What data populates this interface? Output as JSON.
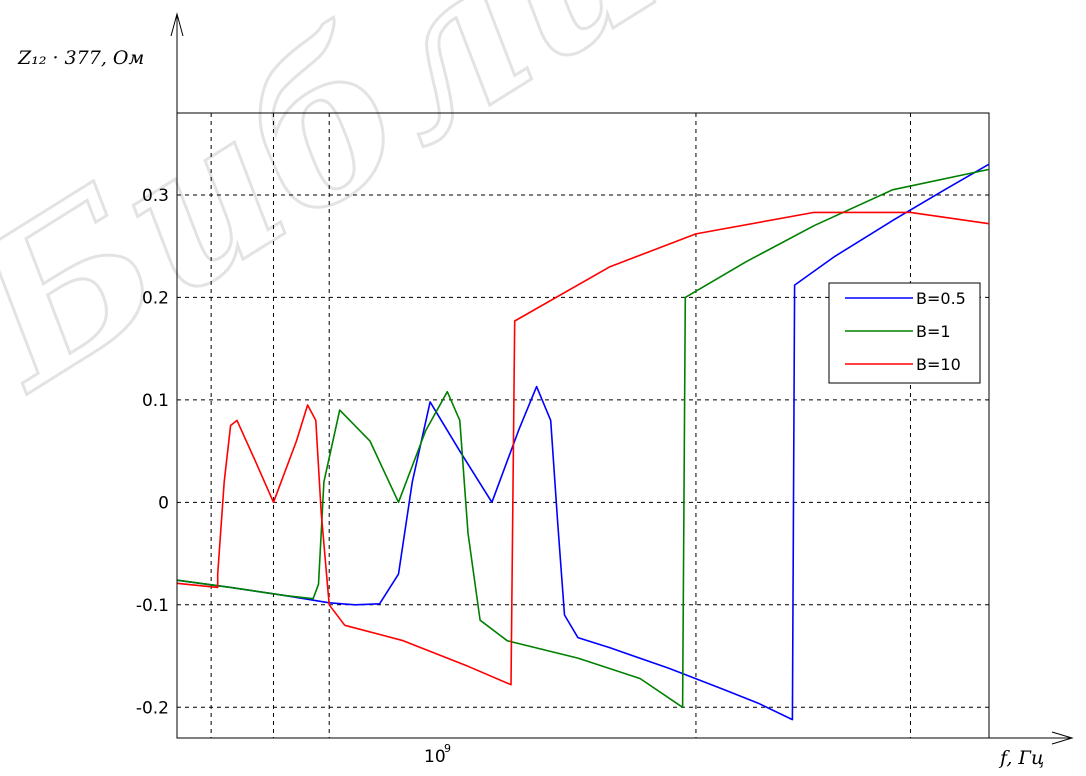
{
  "chart_data": {
    "type": "line",
    "title": "",
    "ylabel": "Z₁₂ · 377, Ом",
    "xlabel": "f, Гц",
    "xscale": "log",
    "watermark": "Библиот",
    "ylim": [
      -0.23,
      0.38
    ],
    "yticks": [
      -0.2,
      -0.1,
      0,
      0.1,
      0.2,
      0.3
    ],
    "ytick_labels": [
      "-0.2",
      "-0.1",
      "0",
      "0.1",
      "0.2",
      "0.3"
    ],
    "xtick_label_base": "10",
    "xtick_label_exp": "9",
    "grid": true,
    "legend_position": "right",
    "series": [
      {
        "name": "B=0.5",
        "color": "#0000ff",
        "points": [
          [
            0.75,
            -0.076
          ],
          [
            0.83,
            -0.083
          ],
          [
            0.92,
            -0.091
          ],
          [
            1.0,
            -0.098
          ],
          [
            1.05,
            -0.1
          ],
          [
            1.1,
            -0.099
          ],
          [
            1.14,
            -0.07
          ],
          [
            1.17,
            0.02
          ],
          [
            1.21,
            0.098
          ],
          [
            1.28,
            0.05
          ],
          [
            1.36,
            0.0
          ],
          [
            1.43,
            0.07
          ],
          [
            1.48,
            0.113
          ],
          [
            1.52,
            0.08
          ],
          [
            1.54,
            -0.02
          ],
          [
            1.56,
            -0.11
          ],
          [
            1.6,
            -0.132
          ],
          [
            1.7,
            -0.142
          ],
          [
            1.9,
            -0.162
          ],
          [
            2.1,
            -0.182
          ],
          [
            2.25,
            -0.196
          ],
          [
            2.4,
            -0.212
          ],
          [
            2.41,
            0.212
          ],
          [
            2.6,
            0.24
          ],
          [
            2.9,
            0.275
          ],
          [
            3.2,
            0.305
          ],
          [
            3.48,
            0.33
          ]
        ]
      },
      {
        "name": "B=1",
        "color": "#008000",
        "points": [
          [
            0.75,
            -0.076
          ],
          [
            0.83,
            -0.083
          ],
          [
            0.92,
            -0.091
          ],
          [
            0.97,
            -0.094
          ],
          [
            0.98,
            -0.08
          ],
          [
            0.99,
            0.02
          ],
          [
            1.02,
            0.09
          ],
          [
            1.08,
            0.06
          ],
          [
            1.14,
            0.0
          ],
          [
            1.2,
            0.07
          ],
          [
            1.25,
            0.108
          ],
          [
            1.28,
            0.08
          ],
          [
            1.3,
            -0.03
          ],
          [
            1.33,
            -0.115
          ],
          [
            1.4,
            -0.135
          ],
          [
            1.6,
            -0.152
          ],
          [
            1.8,
            -0.172
          ],
          [
            1.95,
            -0.2
          ],
          [
            1.96,
            0.2
          ],
          [
            2.2,
            0.235
          ],
          [
            2.5,
            0.27
          ],
          [
            2.9,
            0.305
          ],
          [
            3.48,
            0.325
          ]
        ]
      },
      {
        "name": "B=10",
        "color": "#ff0000",
        "points": [
          [
            0.75,
            -0.079
          ],
          [
            0.81,
            -0.083
          ],
          [
            0.81,
            -0.07
          ],
          [
            0.82,
            0.02
          ],
          [
            0.83,
            0.075
          ],
          [
            0.84,
            0.08
          ],
          [
            0.87,
            0.04
          ],
          [
            0.9,
            0.0
          ],
          [
            0.94,
            0.06
          ],
          [
            0.96,
            0.095
          ],
          [
            0.975,
            0.08
          ],
          [
            0.985,
            -0.01
          ],
          [
            1.0,
            -0.1
          ],
          [
            1.03,
            -0.12
          ],
          [
            1.15,
            -0.135
          ],
          [
            1.3,
            -0.16
          ],
          [
            1.41,
            -0.178
          ],
          [
            1.42,
            0.177
          ],
          [
            1.7,
            0.23
          ],
          [
            2.0,
            0.262
          ],
          [
            2.5,
            0.283
          ],
          [
            3.0,
            0.283
          ],
          [
            3.48,
            0.272
          ]
        ]
      }
    ]
  }
}
